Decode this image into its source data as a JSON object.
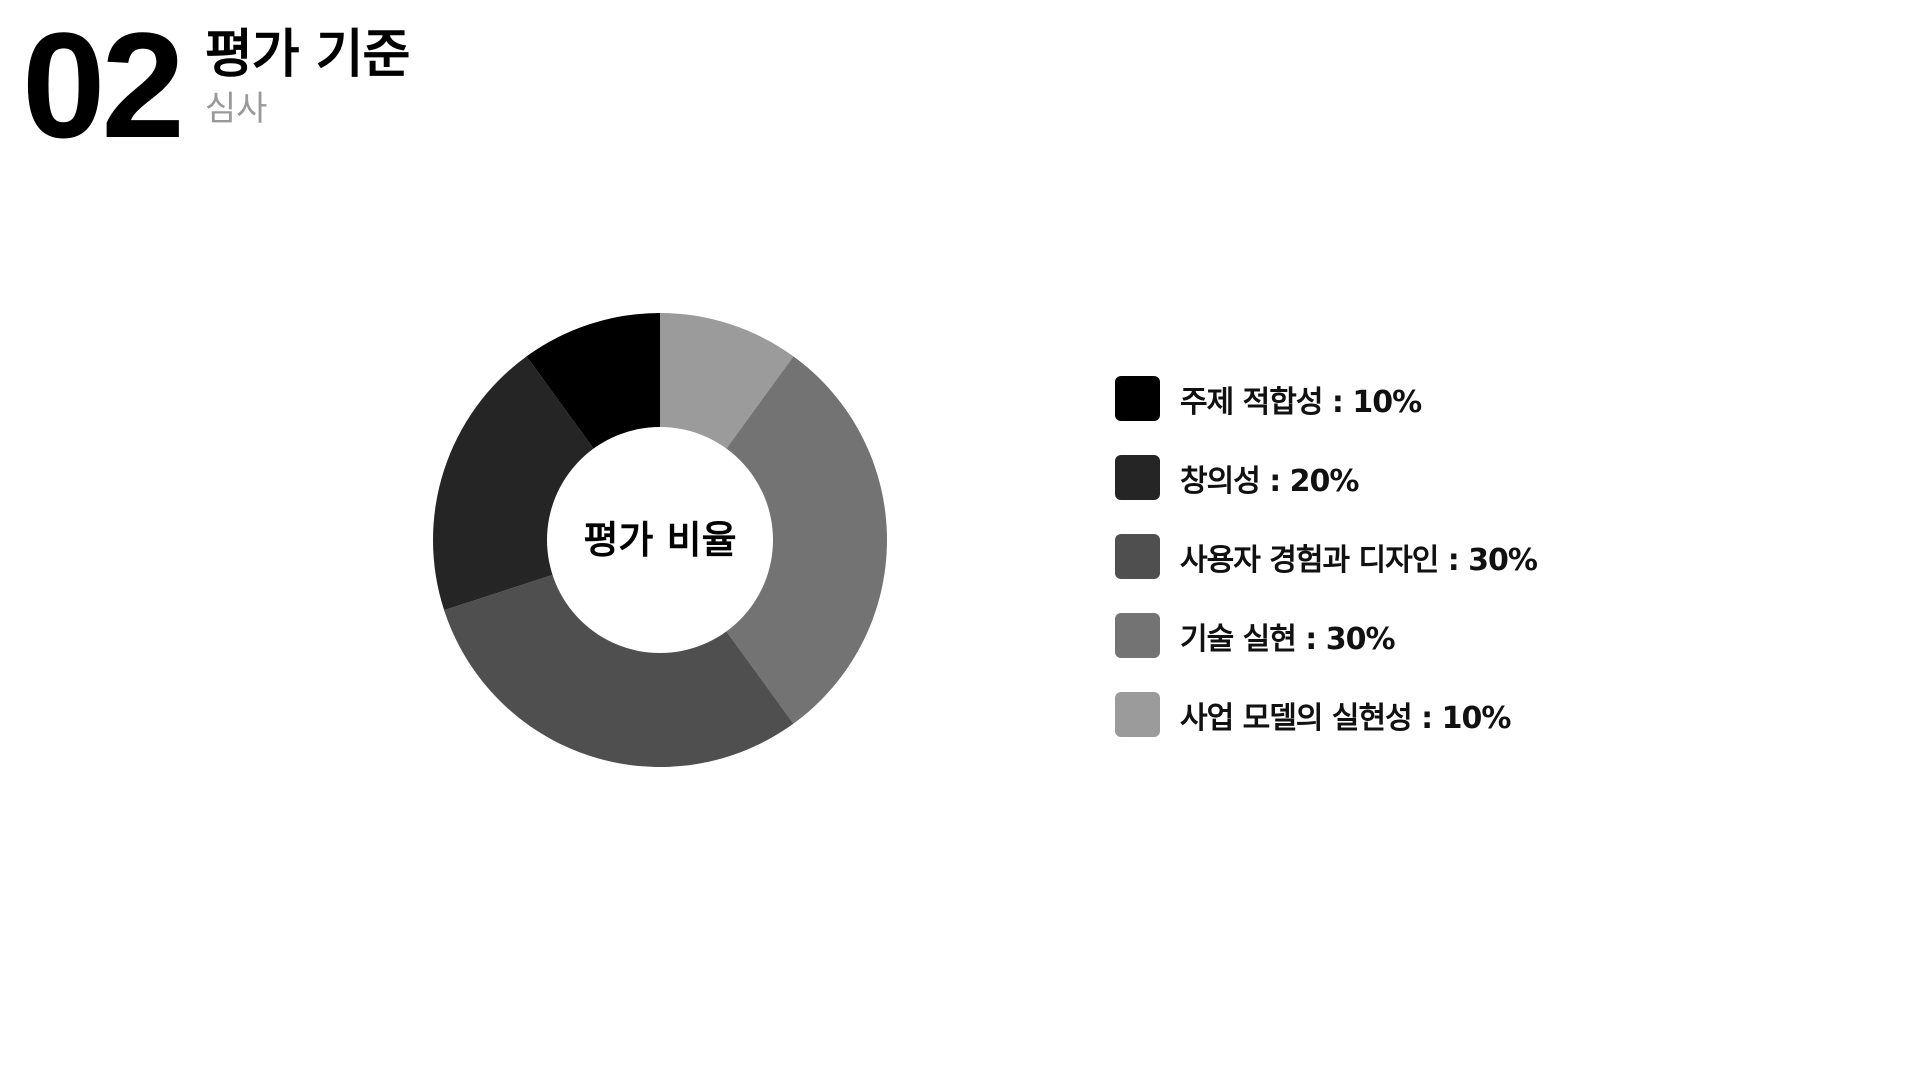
{
  "header": {
    "number": "02",
    "title": "평가 기준",
    "subtitle": "심사"
  },
  "chart_data": {
    "type": "pie",
    "center_label": "평가 비율",
    "labels": [
      "주제 적합성",
      "창의성",
      "사용자 경험과 디자인",
      "기술 실현",
      "사업 모델의 실현성"
    ],
    "values": [
      10,
      20,
      30,
      30,
      10
    ],
    "colors": [
      "#000000",
      "#252525",
      "#4f4f4f",
      "#737373",
      "#9b9b9b"
    ],
    "legend_labels": [
      "주제 적합성 : 10%",
      "창의성 : 20%",
      "사용자 경험과 디자인 : 30%",
      "기술 실현 : 30%",
      "사업 모델의 실현성 : 10%"
    ],
    "legend_position": "right"
  }
}
